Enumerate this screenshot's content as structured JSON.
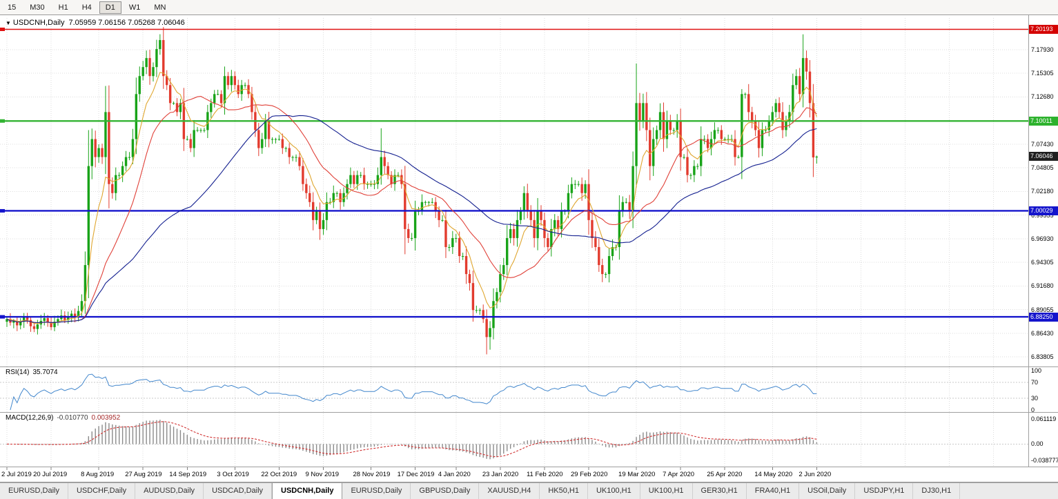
{
  "toolbar": {
    "timeframes": [
      "15",
      "M30",
      "H1",
      "H4",
      "D1",
      "W1",
      "MN"
    ],
    "active": "D1"
  },
  "chart_header": {
    "symbol_period": "USDCNH,Daily",
    "ohlc": "7.05959 7.06156 7.05268 7.06046"
  },
  "price_axis": {
    "ticks": [
      "7.17930",
      "7.15305",
      "7.12680",
      "7.07430",
      "7.04805",
      "7.02180",
      "6.99555",
      "6.96930",
      "6.94305",
      "6.91680",
      "6.89055",
      "6.86430",
      "6.83805"
    ],
    "levels": [
      {
        "label": "7.20193",
        "price": 7.20193,
        "color": "#d40000"
      },
      {
        "label": "7.10011",
        "price": 7.10011,
        "color": "#2db22d"
      },
      {
        "label": "7.00029",
        "price": 7.00029,
        "color": "#1414cc"
      },
      {
        "label": "6.88250",
        "price": 6.8825,
        "color": "#1414cc"
      }
    ],
    "current": {
      "label": "7.06046",
      "price": 7.06046,
      "color": "#1f1f1f"
    }
  },
  "time_axis": {
    "labels": [
      {
        "text": "2 Jul 2019",
        "index": 0
      },
      {
        "text": "20 Jul 2019",
        "index": 13
      },
      {
        "text": "8 Aug 2019",
        "index": 27
      },
      {
        "text": "27 Aug 2019",
        "index": 40
      },
      {
        "text": "14 Sep 2019",
        "index": 53
      },
      {
        "text": "3 Oct 2019",
        "index": 67
      },
      {
        "text": "22 Oct 2019",
        "index": 80
      },
      {
        "text": "9 Nov 2019",
        "index": 93
      },
      {
        "text": "28 Nov 2019",
        "index": 107
      },
      {
        "text": "17 Dec 2019",
        "index": 120
      },
      {
        "text": "4 Jan 2020",
        "index": 132
      },
      {
        "text": "23 Jan 2020",
        "index": 145
      },
      {
        "text": "11 Feb 2020",
        "index": 158
      },
      {
        "text": "29 Feb 2020",
        "index": 171
      },
      {
        "text": "19 Mar 2020",
        "index": 185
      },
      {
        "text": "7 Apr 2020",
        "index": 198
      },
      {
        "text": "25 Apr 2020",
        "index": 211
      },
      {
        "text": "14 May 2020",
        "index": 225
      },
      {
        "text": "2 Jun 2020",
        "index": 238
      }
    ]
  },
  "rsi_panel": {
    "name": "RSI(14)",
    "value": "35.7074",
    "axis": [
      {
        "label": "100",
        "value": 100
      },
      {
        "label": "70",
        "value": 70
      },
      {
        "label": "30",
        "value": 30
      },
      {
        "label": "0",
        "value": 0
      }
    ],
    "levels": [
      70,
      30
    ]
  },
  "macd_panel": {
    "name": "MACD(12,26,9)",
    "value_main": "-0.010770",
    "value_signal": "0.003952",
    "axis": [
      {
        "label": "0.061119",
        "value": 0.061119
      },
      {
        "label": "0.00",
        "value": 0
      },
      {
        "label": "-0.038777",
        "value": -0.038777
      }
    ]
  },
  "tabs": [
    {
      "label": "EURUSD,Daily",
      "active": false
    },
    {
      "label": "USDCHF,Daily",
      "active": false
    },
    {
      "label": "AUDUSD,Daily",
      "active": false
    },
    {
      "label": "USDCAD,Daily",
      "active": false
    },
    {
      "label": "USDCNH,Daily",
      "active": true
    },
    {
      "label": "EURUSD,Daily",
      "active": false
    },
    {
      "label": "GBPUSD,Daily",
      "active": false
    },
    {
      "label": "XAUUSD,H4",
      "active": false
    },
    {
      "label": "HK50,H1",
      "active": false
    },
    {
      "label": "UK100,H1",
      "active": false
    },
    {
      "label": "UK100,H1",
      "active": false
    },
    {
      "label": "GER30,H1",
      "active": false
    },
    {
      "label": "FRA40,H1",
      "active": false
    },
    {
      "label": "USOil,Daily",
      "active": false
    },
    {
      "label": "USDJPY,H1",
      "active": false
    },
    {
      "label": "DJ30,H1",
      "active": false
    }
  ],
  "chart_data": {
    "type": "candlestick",
    "symbol": "USDCNH",
    "period": "Daily",
    "up_color": "#18a318",
    "down_color": "#e23b2e",
    "first_open": 6.877,
    "closes": [
      6.88,
      6.876,
      6.878,
      6.873,
      6.877,
      6.882,
      6.879,
      6.872,
      6.869,
      6.874,
      6.878,
      6.881,
      6.876,
      6.871,
      6.877,
      6.88,
      6.884,
      6.879,
      6.883,
      6.886,
      6.882,
      6.889,
      6.9,
      6.94,
      7.05,
      7.08,
      7.06,
      7.07,
      7.06,
      7.11,
      7.03,
      7.02,
      7.04,
      7.04,
      7.05,
      7.06,
      7.06,
      7.08,
      7.13,
      7.15,
      7.16,
      7.17,
      7.15,
      7.16,
      7.18,
      7.19,
      7.15,
      7.14,
      7.12,
      7.12,
      7.11,
      7.12,
      7.08,
      7.08,
      7.07,
      7.09,
      7.09,
      7.09,
      7.09,
      7.11,
      7.12,
      7.13,
      7.13,
      7.12,
      7.15,
      7.14,
      7.15,
      7.14,
      7.13,
      7.14,
      7.14,
      7.13,
      7.11,
      7.09,
      7.07,
      7.08,
      7.1,
      7.08,
      7.08,
      7.08,
      7.08,
      7.07,
      7.07,
      7.06,
      7.06,
      7.06,
      7.05,
      7.03,
      7.02,
      7.01,
      6.99,
      7.0,
      6.98,
      6.99,
      7.01,
      7.01,
      7.02,
      7.02,
      7.01,
      7.02,
      7.03,
      7.04,
      7.03,
      7.04,
      7.04,
      7.03,
      7.03,
      7.03,
      7.03,
      7.04,
      7.06,
      7.05,
      7.04,
      7.03,
      7.04,
      7.04,
      7.03,
      6.98,
      6.97,
      6.97,
      7.0,
      7.0,
      7.01,
      7.01,
      7.01,
      7.01,
      7.0,
      6.99,
      6.99,
      6.96,
      6.96,
      6.97,
      6.97,
      6.95,
      6.95,
      6.93,
      6.92,
      6.89,
      6.89,
      6.89,
      6.88,
      6.86,
      6.87,
      6.9,
      6.91,
      6.93,
      6.94,
      6.97,
      6.98,
      6.97,
      6.99,
      7.0,
      7.02,
      7.0,
      6.99,
      6.97,
      7.0,
      6.99,
      6.97,
      6.96,
      6.98,
      6.99,
      6.98,
      7.0,
      7.0,
      7.02,
      7.03,
      7.03,
      7.03,
      7.02,
      7.03,
      6.99,
      6.97,
      6.96,
      6.94,
      6.93,
      6.93,
      6.95,
      6.96,
      6.96,
      7.0,
      7.01,
      7.01,
      7.0,
      7.05,
      7.12,
      7.1,
      7.12,
      7.09,
      7.05,
      7.08,
      7.09,
      7.11,
      7.08,
      7.1,
      7.09,
      7.09,
      7.1,
      7.06,
      7.06,
      7.04,
      7.04,
      7.05,
      7.05,
      7.08,
      7.08,
      7.07,
      7.08,
      7.09,
      7.09,
      7.08,
      7.08,
      7.08,
      7.08,
      7.06,
      7.06,
      7.13,
      7.13,
      7.11,
      7.1,
      7.09,
      7.07,
      7.09,
      7.09,
      7.1,
      7.11,
      7.12,
      7.11,
      7.09,
      7.1,
      7.11,
      7.14,
      7.15,
      7.13,
      7.17,
      7.155,
      7.12,
      7.0596,
      7.0605
    ],
    "wick_overrides": {
      "24": {
        "high": 7.09
      },
      "29": {
        "high": 7.139
      },
      "30": {
        "low": 7.003
      },
      "45": {
        "high": 7.1965
      },
      "92": {
        "low": 6.968
      },
      "110": {
        "high": 7.092
      },
      "117": {
        "low": 6.952
      },
      "141": {
        "low": 6.8408
      },
      "142": {
        "low": 6.846
      },
      "175": {
        "low": 6.921
      },
      "185": {
        "high": 7.164
      },
      "216": {
        "high": 7.1355
      },
      "234": {
        "high": 7.1964
      },
      "238": {
        "high": 7.0616,
        "low": 7.0527
      }
    },
    "h_lines": [
      {
        "price": 7.20193,
        "color": "#e01111",
        "width": 1.6
      },
      {
        "price": 7.10011,
        "color": "#32b332",
        "width": 2.4
      },
      {
        "price": 7.00029,
        "color": "#1414cc",
        "width": 2.4
      },
      {
        "price": 6.8825,
        "color": "#1414cc",
        "width": 2.4
      }
    ],
    "moving_averages": [
      {
        "type": "ema",
        "period": 8,
        "color": "#dfa62f"
      },
      {
        "type": "sma",
        "period": 20,
        "color": "#e04038"
      },
      {
        "type": "sma",
        "period": 55,
        "color": "#131f8f"
      }
    ],
    "rsi": {
      "period": 14,
      "color": "#4186cc",
      "current": 35.7074
    },
    "macd": {
      "fast": 12,
      "slow": 26,
      "signal": 9,
      "hist_color": "#8a8a8a",
      "signal_color": "#d03030",
      "current_main": -0.01077,
      "current_signal": 0.003952
    },
    "y_range": [
      6.828,
      7.213
    ],
    "future_grid": [
      251,
      264,
      277,
      290
    ]
  }
}
